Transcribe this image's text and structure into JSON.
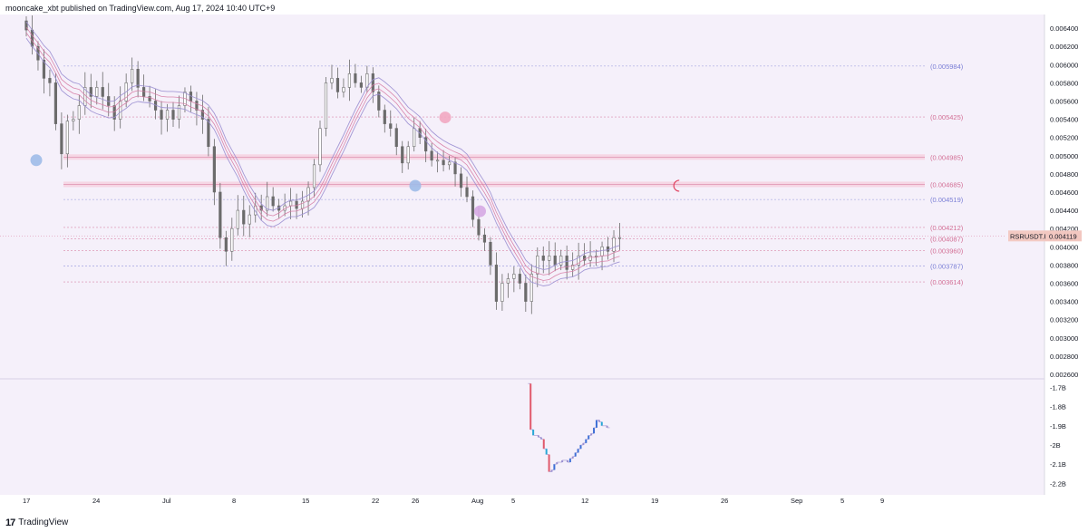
{
  "header": {
    "text": "mooncake_xbt published on TradingView.com, Aug 17, 2024 10:40 UTC+9"
  },
  "footer": {
    "logo_glyph": "17",
    "brand": "TradingView"
  },
  "colors": {
    "background": "#f5f0fa",
    "candle": "#6b6b6b",
    "band_outer": "#9b8fd1",
    "band_inner": "#d67aa3",
    "level_blue": "#7b7fd6",
    "level_pink": "#d36f95",
    "price_tag_bg": "#f2c7c0",
    "bubble_blue": "#9fbbe8",
    "bubble_pink": "#f2a7c1",
    "bubble_lilac": "#d6a8e3",
    "osc_red": "#e0596b",
    "osc_blue": "#3d6fd6",
    "osc_cyan": "#27a7d6"
  },
  "chart_data": [
    {
      "type": "candlestick",
      "symbol": "RSRUSDT.P",
      "last_price": "0.004119",
      "x_ticks": [
        "17",
        "24",
        "Jul",
        "8",
        "15",
        "22",
        "26",
        "Aug",
        "5",
        "12",
        "19",
        "26",
        "Sep",
        "5",
        "9"
      ],
      "y_ticks": [
        "0.006400",
        "0.006200",
        "0.006000",
        "0.005800",
        "0.005600",
        "0.005400",
        "0.005200",
        "0.005000",
        "0.004800",
        "0.004600",
        "0.004400",
        "0.004200",
        "0.004000",
        "0.003800",
        "0.003600",
        "0.003400",
        "0.003200",
        "0.003000",
        "0.002800",
        "0.002600"
      ],
      "ylim": [
        0.00255,
        0.00655
      ],
      "levels": [
        {
          "label": "(0.005984)",
          "value": 0.005984,
          "color": "blue"
        },
        {
          "label": "(0.005425)",
          "value": 0.005425,
          "color": "pink"
        },
        {
          "label": "(0.004985)",
          "value": 0.004985,
          "color": "pink",
          "zone": true
        },
        {
          "label": "(0.004685)",
          "value": 0.004685,
          "color": "pink",
          "zone": true
        },
        {
          "label": "(0.004519)",
          "value": 0.004519,
          "color": "blue"
        },
        {
          "label": "(0.004212)",
          "value": 0.004212,
          "color": "pink"
        },
        {
          "label": "(0.004087)",
          "value": 0.004087,
          "color": "pink"
        },
        {
          "label": "(0.003960)",
          "value": 0.00396,
          "color": "pink"
        },
        {
          "label": "(0.003787)",
          "value": 0.003787,
          "color": "blue"
        },
        {
          "label": "(0.003614)",
          "value": 0.003614,
          "color": "pink"
        }
      ],
      "markers": [
        {
          "date": "Jun 18",
          "value": 0.00495,
          "color": "blue"
        },
        {
          "date": "Jul 26",
          "value": 0.00467,
          "color": "blue"
        },
        {
          "date": "Jul 29",
          "value": 0.00542,
          "color": "pink"
        },
        {
          "date": "Aug 1",
          "value": 0.00439,
          "color": "lilac"
        },
        {
          "date": "Aug 21",
          "value": 0.00467,
          "color": "moon"
        }
      ],
      "closes": [
        0.00638,
        0.0062,
        0.00605,
        0.00585,
        0.0058,
        0.00535,
        0.00502,
        0.00538,
        0.0054,
        0.00555,
        0.00575,
        0.00565,
        0.00575,
        0.00565,
        0.00555,
        0.0054,
        0.0056,
        0.0058,
        0.00595,
        0.00575,
        0.00565,
        0.0056,
        0.0055,
        0.0054,
        0.0055,
        0.0054,
        0.00555,
        0.0057,
        0.0056,
        0.0055,
        0.0054,
        0.0051,
        0.0046,
        0.0041,
        0.00395,
        0.0042,
        0.0044,
        0.00425,
        0.00435,
        0.00445,
        0.0044,
        0.00455,
        0.00445,
        0.0044,
        0.00445,
        0.0045,
        0.00442,
        0.0045,
        0.00465,
        0.0049,
        0.0053,
        0.0058,
        0.00585,
        0.0057,
        0.00575,
        0.0059,
        0.0058,
        0.00575,
        0.0059,
        0.0057,
        0.0055,
        0.00535,
        0.0053,
        0.0051,
        0.00492,
        0.0051,
        0.0053,
        0.0052,
        0.00505,
        0.00495,
        0.00495,
        0.0049,
        0.00493,
        0.0048,
        0.00465,
        0.00455,
        0.0043,
        0.00413,
        0.00405,
        0.0038,
        0.0034,
        0.0036,
        0.00365,
        0.0037,
        0.0036,
        0.0034,
        0.0037,
        0.0039,
        0.00385,
        0.0039,
        0.0038,
        0.0039,
        0.00375,
        0.0038,
        0.0039,
        0.00385,
        0.0039,
        0.0039,
        0.004,
        0.00395,
        0.0041,
        0.0041
      ]
    },
    {
      "type": "line",
      "y_ticks": [
        "-1.7B",
        "-1.8B",
        "-1.9B",
        "-2B",
        "-2.1B",
        "-2.2B"
      ],
      "ylim": [
        -2.26,
        -1.66
      ],
      "values": [
        -1.68,
        -1.92,
        -1.95,
        -1.95,
        -1.96,
        -1.97,
        -2.02,
        -2.05,
        -2.14,
        -2.13,
        -2.1,
        -2.09,
        -2.09,
        -2.08,
        -2.08,
        -2.09,
        -2.07,
        -2.06,
        -2.04,
        -2.02,
        -2.0,
        -1.99,
        -1.97,
        -1.95,
        -1.94,
        -1.91,
        -1.87,
        -1.88,
        -1.9,
        -1.9,
        -1.91,
        -1.91
      ]
    }
  ]
}
